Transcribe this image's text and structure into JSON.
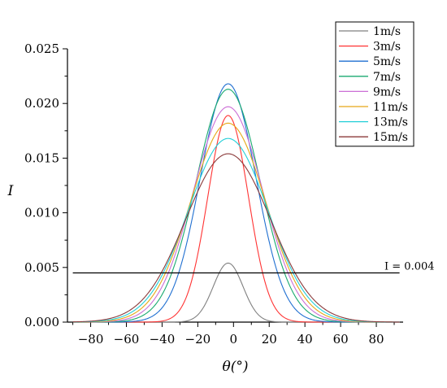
{
  "chart_data": {
    "type": "line",
    "title": "",
    "xlabel": "θ(°)",
    "ylabel": "I",
    "xlim": [
      -93,
      95
    ],
    "ylim": [
      0,
      0.025
    ],
    "x_ticks": [
      -80,
      -60,
      -40,
      -20,
      0,
      20,
      40,
      60,
      80
    ],
    "x_tick_labels": [
      "−80",
      "−60",
      "−40",
      "−20",
      "0",
      "20",
      "40",
      "60",
      "80"
    ],
    "y_ticks": [
      0,
      0.005,
      0.01,
      0.015,
      0.02,
      0.025
    ],
    "y_tick_labels": [
      "0.000",
      "0.005",
      "0.010",
      "0.015",
      "0.020",
      "0.025"
    ],
    "grid": false,
    "legend_position": "top-right",
    "series": [
      {
        "name": "1m/s",
        "color": "#808080",
        "curve": {
          "peak": 0.0054,
          "center": -3,
          "sigma": 8.3
        }
      },
      {
        "name": "3m/s",
        "color": "#ff3333",
        "curve": {
          "peak": 0.0189,
          "center": -3,
          "sigma": 11.4
        }
      },
      {
        "name": "5m/s",
        "color": "#1f6fd1",
        "curve": {
          "peak": 0.0218,
          "center": -3,
          "sigma": 15.6
        }
      },
      {
        "name": "7m/s",
        "color": "#1aaa70",
        "curve": {
          "peak": 0.0213,
          "center": -3,
          "sigma": 17.9
        }
      },
      {
        "name": "9m/s",
        "color": "#cc6fd6",
        "curve": {
          "peak": 0.0197,
          "center": -3,
          "sigma": 19.5
        }
      },
      {
        "name": "11m/s",
        "color": "#e6a817",
        "curve": {
          "peak": 0.0182,
          "center": -3,
          "sigma": 21.0
        }
      },
      {
        "name": "13m/s",
        "color": "#22cfd8",
        "curve": {
          "peak": 0.0168,
          "center": -3,
          "sigma": 22.4
        }
      },
      {
        "name": "15m/s",
        "color": "#8b3a3a",
        "curve": {
          "peak": 0.0154,
          "center": -3,
          "sigma": 23.9
        }
      }
    ],
    "reference_line": {
      "y": 0.0045,
      "x_range": [
        -90,
        93
      ],
      "label": "I = 0.004"
    }
  }
}
